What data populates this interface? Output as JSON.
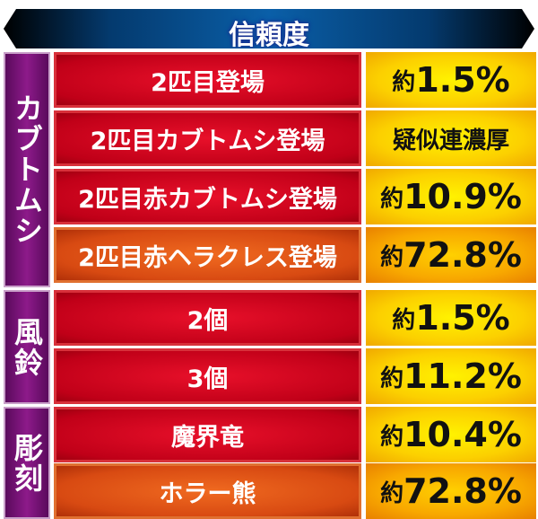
{
  "title": "信頼度",
  "groups": [
    {
      "label": "カブトムシ"
    },
    {
      "label": "風鈴"
    },
    {
      "label": "彫刻"
    }
  ],
  "rows": [
    {
      "name": "2匹目登場",
      "prefix": "約",
      "value": "1.5%",
      "highlight": false
    },
    {
      "name": "2匹目カブトムシ登場",
      "prefix": "",
      "value": "疑似連濃厚",
      "highlight": false
    },
    {
      "name": "2匹目赤カブトムシ登場",
      "prefix": "約",
      "value": "10.9%",
      "highlight": false
    },
    {
      "name": "2匹目赤ヘラクレス登場",
      "prefix": "約",
      "value": "72.8%",
      "highlight": true
    },
    {
      "name": "2個",
      "prefix": "約",
      "value": "1.5%",
      "highlight": false
    },
    {
      "name": "3個",
      "prefix": "約",
      "value": "11.2%",
      "highlight": false
    },
    {
      "name": "魔界竜",
      "prefix": "約",
      "value": "10.4%",
      "highlight": false
    },
    {
      "name": "ホラー熊",
      "prefix": "約",
      "value": "72.8%",
      "highlight": true
    }
  ],
  "colors": {
    "row": "#d0101f",
    "highlight_row": "#e05a18",
    "value": "#fcd000",
    "group": "#7a1478",
    "header": "#0a5fa8"
  }
}
